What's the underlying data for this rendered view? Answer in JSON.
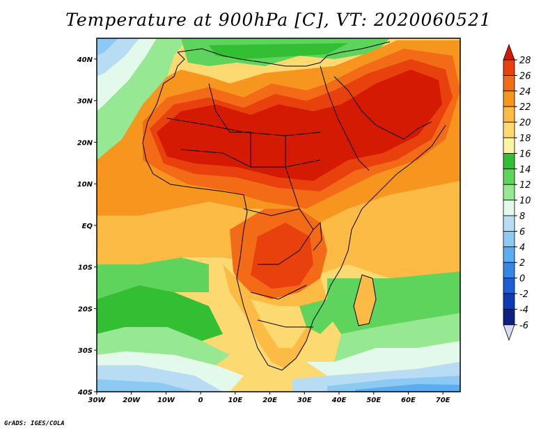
{
  "title": "Temperature at 900hPa [C], VT: 2020060521",
  "footer": "GrADS: IGES/COLA",
  "map": {
    "lon_range": [
      -30,
      75
    ],
    "lat_range": [
      -40,
      45
    ],
    "lon_ticks": [
      "30W",
      "20W",
      "10W",
      "0",
      "10E",
      "20E",
      "30E",
      "40E",
      "50E",
      "60E",
      "70E"
    ],
    "lat_ticks": [
      "40N",
      "30N",
      "20N",
      "10N",
      "EQ",
      "10S",
      "20S",
      "30S",
      "40S"
    ]
  },
  "colorbar": {
    "levels": [
      "28",
      "26",
      "24",
      "22",
      "20",
      "18",
      "16",
      "14",
      "12",
      "10",
      "8",
      "6",
      "4",
      "2",
      "0",
      "-2",
      "-4",
      "-6"
    ],
    "colors": [
      "#d51a04",
      "#e8410e",
      "#f36a17",
      "#f7961f",
      "#fbbb44",
      "#fdd971",
      "#fdf3a5",
      "#32bf33",
      "#5ed45c",
      "#96e892",
      "#e3f9ec",
      "#b7dcf4",
      "#8ccaf4",
      "#5cacf2",
      "#3687e4",
      "#1c5fd3",
      "#0b3bb5",
      "#0b2280",
      "#d9d9f8"
    ]
  }
}
